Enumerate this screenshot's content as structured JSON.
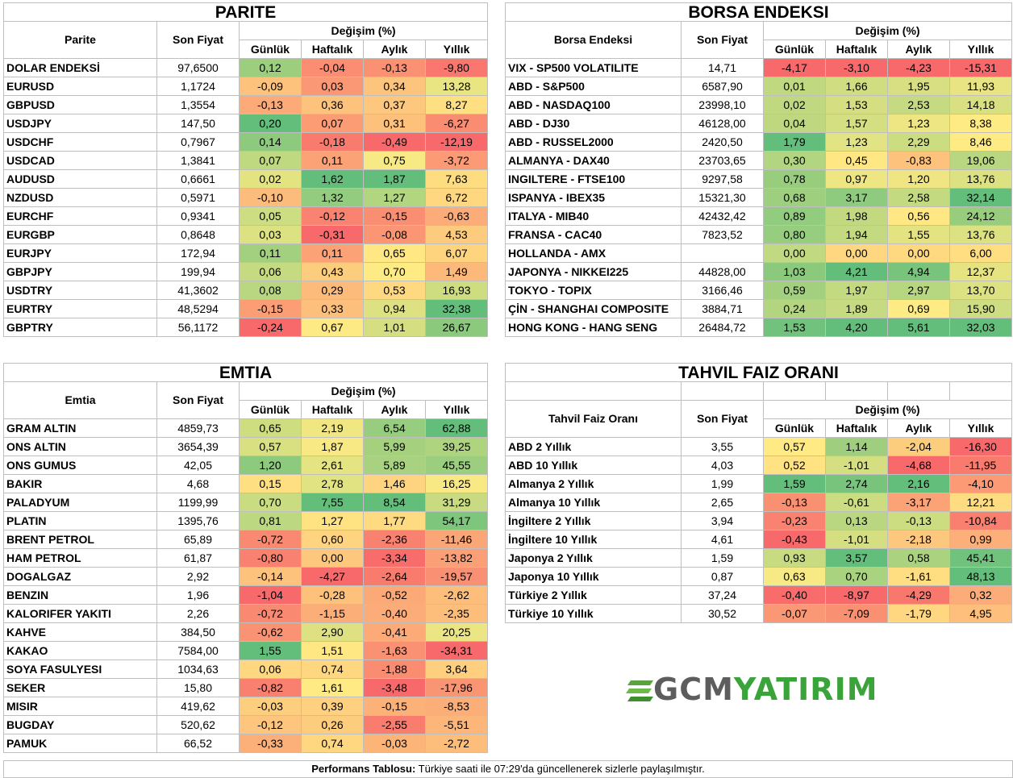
{
  "colors": {
    "red": "#f8696b",
    "green": "#63be7b",
    "yellow": "#ffeb84"
  },
  "parite": {
    "title": "PARITE",
    "col_name": "Parite",
    "col_price": "Son Fiyat",
    "col_change": "Değişim (%)",
    "periods": [
      "Günlük",
      "Haftalık",
      "Aylık",
      "Yıllık"
    ],
    "rows": [
      {
        "name": "DOLAR ENDEKSİ",
        "price": "97,6500",
        "vals": [
          "0,12",
          "-0,04",
          "-0,13",
          "-9,80"
        ]
      },
      {
        "name": "EURUSD",
        "price": "1,1724",
        "vals": [
          "-0,09",
          "0,03",
          "0,34",
          "13,28"
        ]
      },
      {
        "name": "GBPUSD",
        "price": "1,3554",
        "vals": [
          "-0,13",
          "0,36",
          "0,37",
          "8,27"
        ]
      },
      {
        "name": "USDJPY",
        "price": "147,50",
        "vals": [
          "0,20",
          "0,07",
          "0,31",
          "-6,27"
        ]
      },
      {
        "name": "USDCHF",
        "price": "0,7967",
        "vals": [
          "0,14",
          "-0,18",
          "-0,49",
          "-12,19"
        ]
      },
      {
        "name": "USDCAD",
        "price": "1,3841",
        "vals": [
          "0,07",
          "0,11",
          "0,75",
          "-3,72"
        ]
      },
      {
        "name": "AUDUSD",
        "price": "0,6661",
        "vals": [
          "0,02",
          "1,62",
          "1,87",
          "7,63"
        ]
      },
      {
        "name": "NZDUSD",
        "price": "0,5971",
        "vals": [
          "-0,10",
          "1,32",
          "1,27",
          "6,72"
        ]
      },
      {
        "name": "EURCHF",
        "price": "0,9341",
        "vals": [
          "0,05",
          "-0,12",
          "-0,15",
          "-0,63"
        ]
      },
      {
        "name": "EURGBP",
        "price": "0,8648",
        "vals": [
          "0,03",
          "-0,31",
          "-0,08",
          "4,53"
        ]
      },
      {
        "name": "EURJPY",
        "price": "172,94",
        "vals": [
          "0,11",
          "0,11",
          "0,65",
          "6,07"
        ]
      },
      {
        "name": "GBPJPY",
        "price": "199,94",
        "vals": [
          "0,06",
          "0,43",
          "0,70",
          "1,49"
        ]
      },
      {
        "name": "USDTRY",
        "price": "41,3602",
        "vals": [
          "0,08",
          "0,29",
          "0,53",
          "16,93"
        ]
      },
      {
        "name": "EURTRY",
        "price": "48,5294",
        "vals": [
          "-0,15",
          "0,33",
          "0,94",
          "32,38"
        ]
      },
      {
        "name": "GBPTRY",
        "price": "56,1172",
        "vals": [
          "-0,24",
          "0,67",
          "1,01",
          "26,67"
        ]
      }
    ]
  },
  "borsa": {
    "title": "BORSA ENDEKSI",
    "col_name": "Borsa Endeksi",
    "col_price": "Son Fiyat",
    "col_change": "Değişim (%)",
    "periods": [
      "Günlük",
      "Haftalık",
      "Aylık",
      "Yıllık"
    ],
    "rows": [
      {
        "name": "VIX  - SP500 VOLATILITE",
        "price": "14,71",
        "vals": [
          "-4,17",
          "-3,10",
          "-4,23",
          "-15,31"
        ]
      },
      {
        "name": "ABD - S&P500",
        "price": "6587,90",
        "vals": [
          "0,01",
          "1,66",
          "1,95",
          "11,93"
        ]
      },
      {
        "name": "ABD - NASDAQ100",
        "price": "23998,10",
        "vals": [
          "0,02",
          "1,53",
          "2,53",
          "14,18"
        ]
      },
      {
        "name": "ABD - DJ30",
        "price": "46128,00",
        "vals": [
          "0,04",
          "1,57",
          "1,23",
          "8,38"
        ]
      },
      {
        "name": "ABD - RUSSEL2000",
        "price": "2420,50",
        "vals": [
          "1,79",
          "1,23",
          "2,29",
          "8,46"
        ]
      },
      {
        "name": "ALMANYA - DAX40",
        "price": "23703,65",
        "vals": [
          "0,30",
          "0,45",
          "-0,83",
          "19,06"
        ]
      },
      {
        "name": "INGILTERE - FTSE100",
        "price": "9297,58",
        "vals": [
          "0,78",
          "0,97",
          "1,20",
          "13,76"
        ]
      },
      {
        "name": "ISPANYA - IBEX35",
        "price": "15321,30",
        "vals": [
          "0,68",
          "3,17",
          "2,58",
          "32,14"
        ]
      },
      {
        "name": "ITALYA - MIB40",
        "price": "42432,42",
        "vals": [
          "0,89",
          "1,98",
          "0,56",
          "24,12"
        ]
      },
      {
        "name": "FRANSA - CAC40",
        "price": "7823,52",
        "vals": [
          "0,80",
          "1,94",
          "1,55",
          "13,76"
        ]
      },
      {
        "name": "HOLLANDA - AMX",
        "price": "",
        "vals": [
          "0,00",
          "0,00",
          "0,00",
          "6,00"
        ]
      },
      {
        "name": "JAPONYA - NIKKEI225",
        "price": "44828,00",
        "vals": [
          "1,03",
          "4,21",
          "4,94",
          "12,37"
        ]
      },
      {
        "name": "TOKYO - TOPIX",
        "price": "3166,46",
        "vals": [
          "0,59",
          "1,97",
          "2,97",
          "13,70"
        ]
      },
      {
        "name": "ÇİN - SHANGHAI COMPOSITE",
        "price": "3884,71",
        "vals": [
          "0,24",
          "1,89",
          "0,69",
          "15,90"
        ]
      },
      {
        "name": "HONG KONG - HANG SENG",
        "price": "26484,72",
        "vals": [
          "1,53",
          "4,20",
          "5,61",
          "32,03"
        ]
      }
    ]
  },
  "emtia": {
    "title": "EMTIA",
    "col_name": "Emtia",
    "col_price": "Son Fiyat",
    "col_change": "Değişim (%)",
    "periods": [
      "Günlük",
      "Haftalık",
      "Aylık",
      "Yıllık"
    ],
    "rows": [
      {
        "name": "GRAM ALTIN",
        "price": "4859,73",
        "vals": [
          "0,65",
          "2,19",
          "6,54",
          "62,88"
        ]
      },
      {
        "name": "ONS ALTIN",
        "price": "3654,39",
        "vals": [
          "0,57",
          "1,87",
          "5,99",
          "39,25"
        ]
      },
      {
        "name": "ONS GUMUS",
        "price": "42,05",
        "vals": [
          "1,20",
          "2,61",
          "5,89",
          "45,55"
        ]
      },
      {
        "name": "BAKIR",
        "price": "4,68",
        "vals": [
          "0,15",
          "2,78",
          "1,46",
          "16,25"
        ]
      },
      {
        "name": "PALADYUM",
        "price": "1199,99",
        "vals": [
          "0,70",
          "7,55",
          "8,54",
          "31,29"
        ]
      },
      {
        "name": "PLATIN",
        "price": "1395,76",
        "vals": [
          "0,81",
          "1,27",
          "1,77",
          "54,17"
        ]
      },
      {
        "name": "BRENT PETROL",
        "price": "65,89",
        "vals": [
          "-0,72",
          "0,60",
          "-2,36",
          "-11,46"
        ]
      },
      {
        "name": "HAM PETROL",
        "price": "61,87",
        "vals": [
          "-0,80",
          "0,00",
          "-3,34",
          "-13,82"
        ]
      },
      {
        "name": "DOGALGAZ",
        "price": "2,92",
        "vals": [
          "-0,14",
          "-4,27",
          "-2,64",
          "-19,57"
        ]
      },
      {
        "name": "BENZIN",
        "price": "1,96",
        "vals": [
          "-1,04",
          "-0,28",
          "-0,52",
          "-2,62"
        ]
      },
      {
        "name": "KALORIFER YAKITI",
        "price": "2,26",
        "vals": [
          "-0,72",
          "-1,15",
          "-0,40",
          "-2,35"
        ]
      },
      {
        "name": "KAHVE",
        "price": "384,50",
        "vals": [
          "-0,62",
          "2,90",
          "-0,41",
          "20,25"
        ]
      },
      {
        "name": "KAKAO",
        "price": "7584,00",
        "vals": [
          "1,55",
          "1,51",
          "-1,63",
          "-34,31"
        ]
      },
      {
        "name": "SOYA FASULYESI",
        "price": "1034,63",
        "vals": [
          "0,06",
          "0,74",
          "-1,88",
          "3,64"
        ]
      },
      {
        "name": "SEKER",
        "price": "15,80",
        "vals": [
          "-0,82",
          "1,61",
          "-3,48",
          "-17,96"
        ]
      },
      {
        "name": "MISIR",
        "price": "419,62",
        "vals": [
          "-0,03",
          "0,39",
          "-0,15",
          "-8,53"
        ]
      },
      {
        "name": "BUGDAY",
        "price": "520,62",
        "vals": [
          "-0,12",
          "0,26",
          "-2,55",
          "-5,51"
        ]
      },
      {
        "name": "PAMUK",
        "price": "66,52",
        "vals": [
          "-0,33",
          "0,74",
          "-0,03",
          "-2,72"
        ]
      }
    ]
  },
  "tahvil": {
    "title": "TAHVIL FAIZ ORANI",
    "col_name": "Tahvil Faiz Oranı",
    "col_price": "Son Fiyat",
    "col_change": "Değişim (%)",
    "periods": [
      "Günlük",
      "Haftalık",
      "Aylık",
      "Yıllık"
    ],
    "rows": [
      {
        "name": "ABD 2 Yıllık",
        "price": "3,55",
        "vals": [
          "0,57",
          "1,14",
          "-2,04",
          "-16,30"
        ]
      },
      {
        "name": "ABD 10 Yıllık",
        "price": "4,03",
        "vals": [
          "0,52",
          "-1,01",
          "-4,68",
          "-11,95"
        ]
      },
      {
        "name": "Almanya 2 Yıllık",
        "price": "1,99",
        "vals": [
          "1,59",
          "2,74",
          "2,16",
          "-4,10"
        ]
      },
      {
        "name": "Almanya 10 Yıllık",
        "price": "2,65",
        "vals": [
          "-0,13",
          "-0,61",
          "-3,17",
          "12,21"
        ]
      },
      {
        "name": "İngiltere 2 Yıllık",
        "price": "3,94",
        "vals": [
          "-0,23",
          "0,13",
          "-0,13",
          "-10,84"
        ]
      },
      {
        "name": "İngiltere 10 Yıllık",
        "price": "4,61",
        "vals": [
          "-0,43",
          "-1,01",
          "-2,18",
          "0,99"
        ]
      },
      {
        "name": "Japonya 2 Yıllık",
        "price": "1,59",
        "vals": [
          "0,93",
          "3,57",
          "0,58",
          "45,41"
        ]
      },
      {
        "name": "Japonya 10 Yıllık",
        "price": "0,87",
        "vals": [
          "0,63",
          "0,70",
          "-1,61",
          "48,13"
        ]
      },
      {
        "name": "Türkiye 2 Yıllık",
        "price": "37,24",
        "vals": [
          "-0,40",
          "-8,97",
          "-4,29",
          "0,32"
        ]
      },
      {
        "name": "Türkiye 10 Yıllık",
        "price": "30,52",
        "vals": [
          "-0,07",
          "-7,09",
          "-1,79",
          "4,95"
        ]
      }
    ]
  },
  "logo": {
    "part1": "GCM",
    "part2": "YATIRIM"
  },
  "footer": {
    "label": "Performans Tablosu:",
    "text": " Türkiye saati ile 07:29'da güncellenerek sizlerle paylaşılmıştır."
  }
}
